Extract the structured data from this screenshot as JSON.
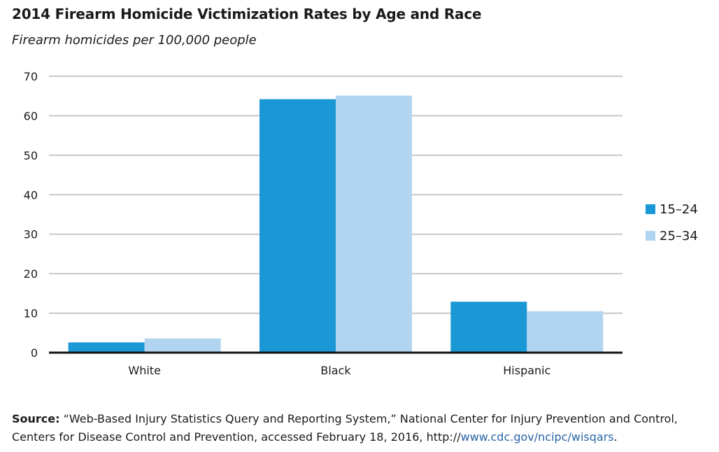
{
  "title": "2014 Firearm Homicide Victimization Rates by Age and Race",
  "subtitle": "Firearm homicides per 100,000 people",
  "source": {
    "label": "Source:",
    "text": "“Web-Based Injury Statistics Query and Reporting System,” National Center for Injury Prevention and Control, Centers for Disease Control and Prevention, accessed February 18, 2016, http://",
    "link": "www.cdc.gov/ncipc/wisqars",
    "end": "."
  },
  "chart_data": {
    "type": "bar",
    "categories": [
      "White",
      "Black",
      "Hispanic"
    ],
    "series": [
      {
        "name": "15–24",
        "values": [
          2.6,
          64.2,
          12.9
        ],
        "color": "#1a98d5"
      },
      {
        "name": "25–34",
        "values": [
          3.6,
          65.1,
          10.5
        ],
        "color": "#b1d5f0"
      }
    ],
    "yticks": [
      0,
      10,
      20,
      30,
      40,
      50,
      60,
      70
    ],
    "ylim": [
      0,
      70
    ],
    "grid": true,
    "legend_position": "right"
  }
}
